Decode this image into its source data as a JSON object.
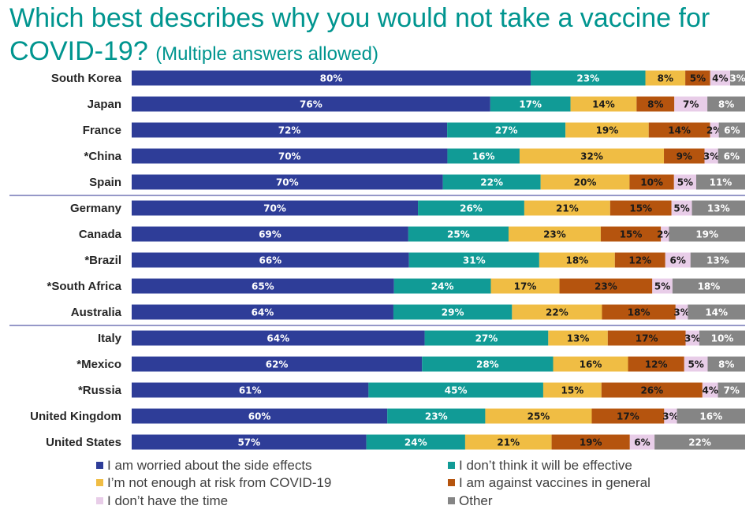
{
  "title": {
    "main": "Which best describes why you would not take a vaccine for COVID-19?",
    "sub": "(Multiple answers allowed)"
  },
  "colors": {
    "title": "#00958f",
    "separator": "#2e3192",
    "series": [
      "#2e3d98",
      "#119b96",
      "#f0bd44",
      "#b5540e",
      "#e8cde8",
      "#858585"
    ],
    "label_light": "#ffffff",
    "label_dark": "#1a1a1a"
  },
  "chart_data": {
    "type": "bar",
    "orientation": "horizontal",
    "stacked": true,
    "title": "Which best describes why you would not take a vaccine for COVID-19? (Multiple answers allowed)",
    "xlabel": "",
    "ylabel": "",
    "legend_position": "bottom",
    "categories": [
      "South Korea",
      "Japan",
      "France",
      "*China",
      "Spain",
      "Germany",
      "Canada",
      "*Brazil",
      "*South Africa",
      "Australia",
      "Italy",
      "*Mexico",
      "*Russia",
      "United Kingdom",
      "United States"
    ],
    "group_breaks_after": [
      4,
      9
    ],
    "series": [
      {
        "name": "I am worried about the side effects",
        "values": [
          80,
          76,
          72,
          70,
          70,
          70,
          69,
          66,
          65,
          64,
          64,
          62,
          61,
          60,
          57
        ]
      },
      {
        "name": "I don’t think it will be effective",
        "values": [
          23,
          17,
          27,
          16,
          22,
          26,
          25,
          31,
          24,
          29,
          27,
          28,
          45,
          23,
          24
        ]
      },
      {
        "name": "I’m not enough at risk from COVID-19",
        "values": [
          8,
          14,
          19,
          32,
          20,
          21,
          23,
          18,
          17,
          22,
          13,
          16,
          15,
          25,
          21
        ]
      },
      {
        "name": "I am against vaccines in general",
        "values": [
          5,
          8,
          14,
          9,
          10,
          15,
          15,
          12,
          23,
          18,
          17,
          12,
          26,
          17,
          19
        ]
      },
      {
        "name": "I don’t have the time",
        "values": [
          4,
          7,
          2,
          3,
          5,
          5,
          2,
          6,
          5,
          3,
          3,
          5,
          4,
          3,
          6
        ]
      },
      {
        "name": "Other",
        "values": [
          3,
          8,
          6,
          6,
          11,
          13,
          19,
          13,
          18,
          14,
          10,
          8,
          7,
          16,
          22
        ]
      }
    ],
    "value_suffix": "%"
  }
}
